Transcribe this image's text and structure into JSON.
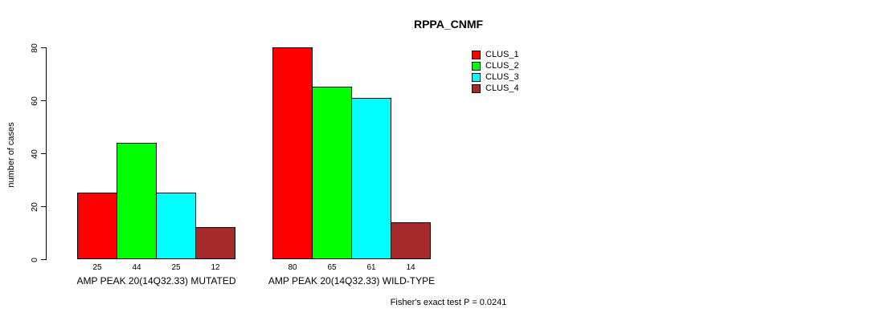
{
  "chart_data": {
    "type": "bar",
    "title": "RPPA_CNMF",
    "ylabel": "number of cases",
    "xlabel": "",
    "ylim": [
      0,
      80
    ],
    "yticks": [
      0,
      20,
      40,
      60,
      80
    ],
    "grid": false,
    "legend_position": "top-right",
    "categories": [
      "AMP PEAK 20(14Q32.33) MUTATED",
      "AMP PEAK 20(14Q32.33) WILD-TYPE"
    ],
    "series": [
      {
        "name": "CLUS_1",
        "color": "#FF0000",
        "values": [
          25,
          80
        ]
      },
      {
        "name": "CLUS_2",
        "color": "#00FF00",
        "values": [
          44,
          65
        ]
      },
      {
        "name": "CLUS_3",
        "color": "#00FFFF",
        "values": [
          25,
          61
        ]
      },
      {
        "name": "CLUS_4",
        "color": "#A52A2A",
        "values": [
          12,
          14
        ]
      }
    ],
    "footnote": "Fisher's exact test P = 0.0241"
  }
}
